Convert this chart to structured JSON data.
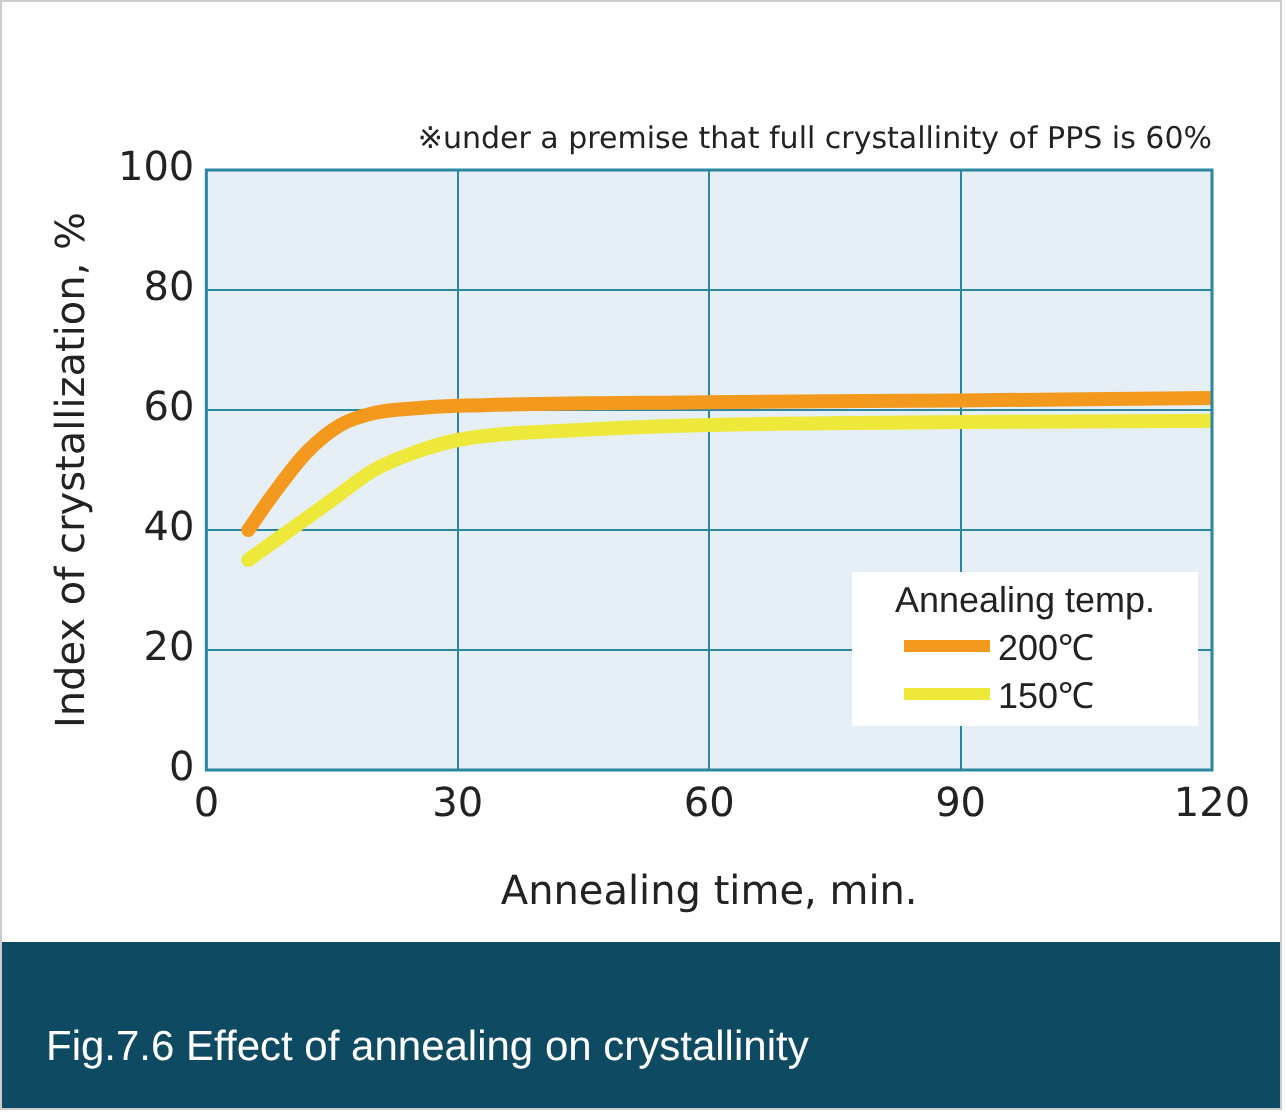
{
  "chart_data": {
    "type": "line",
    "subtitle": "※under a premise that full crystallinity of PPS is 60%",
    "xlabel": "Annealing time, min.",
    "ylabel": "Index of crystallization, %",
    "legend_title": "Annealing temp.",
    "legend": "bottom right",
    "grid": true,
    "marker": "none",
    "line_style": "solid",
    "xlim": [
      0,
      120
    ],
    "xticks": [
      0,
      30,
      60,
      90,
      120
    ],
    "ylim": [
      0,
      100
    ],
    "yticks": [
      0,
      20,
      40,
      60,
      80,
      100
    ],
    "series": [
      {
        "name": "200℃",
        "color": "#f39a1e",
        "x": [
          5,
          8,
          12,
          16,
          20,
          25,
          30,
          60,
          90,
          120
        ],
        "values": [
          40,
          46,
          53,
          57.5,
          59.5,
          60.3,
          60.7,
          61.3,
          61.6,
          62
        ]
      },
      {
        "name": "150℃",
        "color": "#eee83a",
        "x": [
          5,
          10,
          15,
          20,
          25,
          30,
          45,
          60,
          90,
          120
        ],
        "values": [
          35,
          40,
          45,
          50,
          53,
          55,
          56.7,
          57.5,
          58,
          58.2
        ]
      }
    ],
    "annotations": [
      "Fig.7.6 Effect of annealing on crystallinity"
    ]
  }
}
